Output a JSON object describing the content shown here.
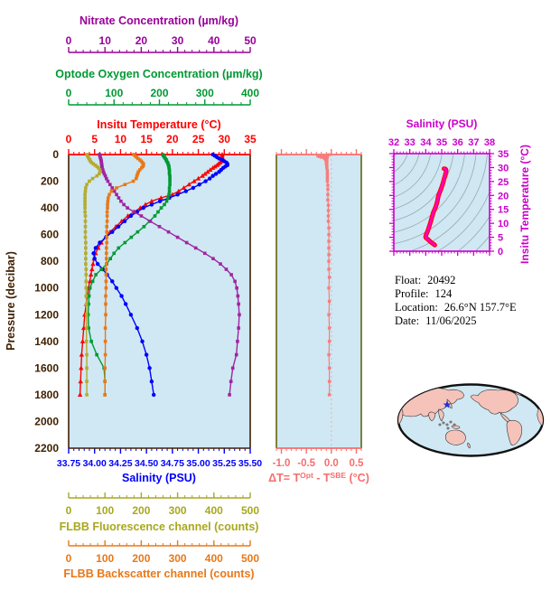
{
  "titles": {
    "nitrate": "Nitrate Concentration (µm/kg)",
    "oxygen": "Optode Oxygen Concentration (µm/kg)",
    "temperature": "Insitu Temperature (°C)",
    "salinity": "Salinity (PSU)",
    "fluorescence": "FLBB Fluorescence channel (counts)",
    "backscatter": "FLBB Backscatter channel (counts)",
    "pressure": "Pressure (decibar)",
    "ts_salinity": "Salinity (PSU)",
    "ts_temperature": "Insitu Temperature (°C)",
    "dt": {
      "p1": "ΔT= T",
      "sup1": "Opt",
      "p2": " - T",
      "sup2": "SBE",
      "p3": " (°C)"
    }
  },
  "info": {
    "float_label": "Float:",
    "float_value": "20492",
    "profile_label": "Profile:",
    "profile_value": "124",
    "location_label": "Location:",
    "location_value": "26.6°N  157.7°E",
    "date_label": "Date:",
    "date_value": "11/06/2025"
  },
  "chart_data": {
    "type": "line",
    "axes": {
      "nitrate": {
        "min": 0,
        "max": 50,
        "majors": [
          0,
          10,
          20,
          30,
          40,
          50
        ],
        "tick_labels": [
          "0",
          "10",
          "20",
          "30",
          "40",
          "50"
        ],
        "minor_step": 2,
        "color": "#990099"
      },
      "oxygen": {
        "min": 0,
        "max": 400,
        "majors": [
          0,
          100,
          200,
          300,
          400
        ],
        "tick_labels": [
          "0",
          "100",
          "200",
          "300",
          "400"
        ],
        "minor_step": 20,
        "color": "#009933"
      },
      "temperature": {
        "min": 0,
        "max": 35,
        "majors": [
          0,
          5,
          10,
          15,
          20,
          25,
          30,
          35
        ],
        "tick_labels": [
          "0",
          "5",
          "10",
          "15",
          "20",
          "25",
          "30",
          "35"
        ],
        "minor_step": 1,
        "color": "#ff0000"
      },
      "salinity": {
        "min": 33.75,
        "max": 35.5,
        "majors": [
          33.75,
          34.0,
          34.25,
          34.5,
          34.75,
          35.0,
          35.25,
          35.5
        ],
        "tick_labels": [
          "33.75",
          "34.00",
          "34.25",
          "34.50",
          "34.75",
          "35.00",
          "35.25",
          "35.50"
        ],
        "minor_step": 0.05,
        "color": "#0000ff"
      },
      "fluorescence": {
        "min": 0,
        "max": 500,
        "majors": [
          0,
          100,
          200,
          300,
          400,
          500
        ],
        "tick_labels": [
          "0",
          "100",
          "200",
          "300",
          "400",
          "500"
        ],
        "minor_step": 20,
        "color": "#a8a81e"
      },
      "backscatter": {
        "min": 0,
        "max": 500,
        "majors": [
          0,
          100,
          200,
          300,
          400,
          500
        ],
        "tick_labels": [
          "0",
          "100",
          "200",
          "300",
          "400",
          "500"
        ],
        "minor_step": 20,
        "color": "#e87819"
      },
      "pressure": {
        "min": 0,
        "max": 2200,
        "majors": [
          0,
          200,
          400,
          600,
          800,
          1000,
          1200,
          1400,
          1600,
          1800,
          2000,
          2200
        ],
        "tick_labels": [
          "0",
          "200",
          "400",
          "600",
          "800",
          "1000",
          "1200",
          "1400",
          "1600",
          "1800",
          "2000",
          "2200"
        ],
        "minor_step": 50,
        "color": "#402000"
      },
      "delta_t": {
        "min": -1.1,
        "max": 0.6,
        "majors": [
          -1.0,
          -0.5,
          0.0,
          0.5
        ],
        "tick_labels": [
          "-1.0",
          "-0.5",
          "0.0",
          "0.5"
        ],
        "minor_step": 0.1,
        "color": "#f86d6d",
        "side_tick_color": "#5a5a00"
      },
      "ts_salinity": {
        "min": 32,
        "max": 38,
        "majors": [
          32,
          33,
          34,
          35,
          36,
          37,
          38
        ],
        "tick_labels": [
          "32",
          "33",
          "34",
          "35",
          "36",
          "37",
          "38"
        ],
        "minor_step": 0.2,
        "color": "#cc00cc"
      },
      "ts_temperature": {
        "min": 0,
        "max": 35,
        "majors": [
          0,
          5,
          10,
          15,
          20,
          25,
          30,
          35
        ],
        "tick_labels": [
          "0",
          "5",
          "10",
          "15",
          "20",
          "25",
          "30",
          "35"
        ],
        "minor_step": 1,
        "color": "#cc00cc"
      }
    },
    "plot_bg_color": "#cfe8f3",
    "profiles": {
      "pressure": [
        0,
        10,
        20,
        30,
        40,
        50,
        60,
        70,
        80,
        90,
        100,
        115,
        130,
        145,
        160,
        180,
        200,
        225,
        250,
        275,
        300,
        325,
        350,
        375,
        400,
        430,
        460,
        500,
        540,
        580,
        620,
        660,
        700,
        740,
        780,
        820,
        860,
        900,
        950,
        1000,
        1060,
        1120,
        1200,
        1300,
        1400,
        1500,
        1600,
        1700,
        1800
      ],
      "series": [
        {
          "id": "temperature",
          "axis": "temperature",
          "color": "#ff0000",
          "marker": "triangle",
          "values": [
            29.6,
            29.6,
            29.6,
            29.5,
            29.5,
            29.4,
            29.2,
            28.9,
            28.6,
            28.2,
            27.8,
            27.3,
            26.8,
            26.3,
            25.8,
            25.0,
            24.2,
            23.2,
            22.2,
            21.2,
            20.0,
            17.8,
            16.0,
            14.8,
            13.8,
            12.6,
            11.4,
            10.2,
            9.1,
            8.0,
            7.1,
            6.3,
            5.7,
            5.2,
            4.9,
            4.7,
            4.5,
            4.3,
            4.1,
            3.8,
            3.6,
            3.4,
            3.1,
            2.9,
            2.7,
            2.5,
            2.4,
            2.3,
            2.2
          ]
        },
        {
          "id": "salinity",
          "axis": "salinity",
          "color": "#0000ff",
          "marker": "circle",
          "values": [
            35.14,
            35.16,
            35.18,
            35.2,
            35.23,
            35.25,
            35.27,
            35.28,
            35.28,
            35.26,
            35.24,
            35.22,
            35.2,
            35.17,
            35.14,
            35.11,
            35.07,
            35.01,
            34.95,
            34.88,
            34.8,
            34.72,
            34.63,
            34.55,
            34.47,
            34.41,
            34.35,
            34.29,
            34.23,
            34.17,
            34.11,
            34.05,
            34.01,
            33.99,
            34.0,
            34.03,
            34.08,
            34.12,
            34.17,
            34.21,
            34.26,
            34.3,
            34.35,
            34.41,
            34.46,
            34.5,
            34.53,
            34.55,
            34.57
          ]
        },
        {
          "id": "oxygen",
          "axis": "oxygen",
          "color": "#009933",
          "marker": "square",
          "values": [
            207,
            209,
            211,
            213,
            215,
            216,
            218,
            219,
            220,
            221,
            221,
            222,
            222,
            222,
            223,
            223,
            223,
            223,
            222,
            222,
            221,
            219,
            216,
            211,
            204,
            197,
            190,
            178,
            166,
            152,
            138,
            124,
            110,
            100,
            92,
            84,
            72,
            60,
            53,
            47,
            45,
            44,
            43,
            44,
            50,
            62,
            78,
            80,
            80
          ]
        },
        {
          "id": "nitrate",
          "axis": "nitrate",
          "color": "#a024a0",
          "marker": "square",
          "values": [
            8.5,
            8.6,
            8.7,
            8.8,
            8.9,
            9.0,
            9.0,
            9.1,
            9.1,
            9.2,
            9.2,
            9.4,
            9.6,
            9.8,
            10.1,
            10.4,
            10.8,
            11.4,
            12.0,
            12.6,
            13.2,
            13.8,
            14.4,
            15.2,
            16.2,
            18.0,
            20.0,
            22.5,
            25.0,
            27.5,
            30.0,
            32.5,
            35.0,
            37.5,
            39.8,
            41.8,
            43.4,
            44.8,
            45.8,
            46.3,
            46.6,
            46.8,
            47.0,
            46.8,
            46.5,
            46.2,
            45.2,
            44.7,
            44.3
          ]
        },
        {
          "id": "fluorescence",
          "axis": "fluorescence",
          "color": "#b5ab2e",
          "marker": "square",
          "values": [
            50,
            52,
            54,
            56,
            58,
            60,
            63,
            68,
            73,
            78,
            82,
            86,
            87,
            84,
            78,
            66,
            57,
            50,
            47,
            46,
            45,
            45,
            45,
            45,
            45,
            45,
            46,
            46,
            46,
            46,
            46,
            47,
            47,
            47,
            47,
            47,
            48,
            48,
            48,
            48,
            48,
            49,
            49,
            49,
            49,
            50,
            50,
            50,
            50
          ]
        },
        {
          "id": "backscatter",
          "axis": "backscatter",
          "color": "#e87819",
          "marker": "square",
          "values": [
            179,
            183,
            187,
            191,
            196,
            200,
            203,
            206,
            206,
            204,
            201,
            196,
            192,
            190,
            188,
            186,
            178,
            155,
            132,
            118,
            112,
            109,
            108,
            107,
            107,
            106,
            106,
            106,
            105,
            105,
            105,
            105,
            104,
            104,
            104,
            104,
            103,
            103,
            103,
            103,
            102,
            102,
            102,
            101,
            101,
            101,
            100,
            100,
            100
          ]
        }
      ]
    },
    "delta_t_profile": {
      "color": "#f87d7d",
      "pressure": [
        2,
        5,
        8,
        10,
        12,
        15,
        18,
        20,
        24,
        28,
        32,
        36,
        40,
        45,
        50,
        60,
        70,
        80,
        90,
        100,
        120,
        140,
        160,
        180,
        200,
        230,
        260,
        300,
        340,
        380,
        420,
        460,
        500,
        550,
        600,
        650,
        700,
        750,
        800,
        860,
        920,
        1000,
        1100,
        1200,
        1300,
        1400,
        1500,
        1600,
        1700,
        1800
      ],
      "values": [
        -0.05,
        -0.22,
        -0.1,
        -0.27,
        -0.16,
        -0.24,
        -0.08,
        -0.2,
        -0.14,
        -0.1,
        -0.13,
        -0.09,
        -0.11,
        -0.09,
        -0.1,
        -0.09,
        -0.1,
        -0.09,
        -0.09,
        -0.09,
        -0.08,
        -0.08,
        -0.08,
        -0.08,
        -0.08,
        -0.07,
        -0.07,
        -0.07,
        -0.07,
        -0.06,
        -0.06,
        -0.06,
        -0.06,
        -0.05,
        -0.05,
        -0.05,
        -0.05,
        -0.05,
        -0.05,
        -0.05,
        -0.04,
        -0.05,
        -0.04,
        -0.05,
        -0.04,
        -0.04,
        -0.05,
        -0.04,
        -0.04,
        -0.04
      ]
    },
    "ts_curve": {
      "outline_color": "#ff0000",
      "color": "#ff00bb",
      "contour_color": "#9ba8ad"
    },
    "map": {
      "ocean_color": "#cfe8f3",
      "land_color": "#f5c3ba",
      "outline_color": "#111111",
      "star": {
        "fx": 0.341,
        "fy": 0.293,
        "color": "#2233cc"
      }
    }
  }
}
